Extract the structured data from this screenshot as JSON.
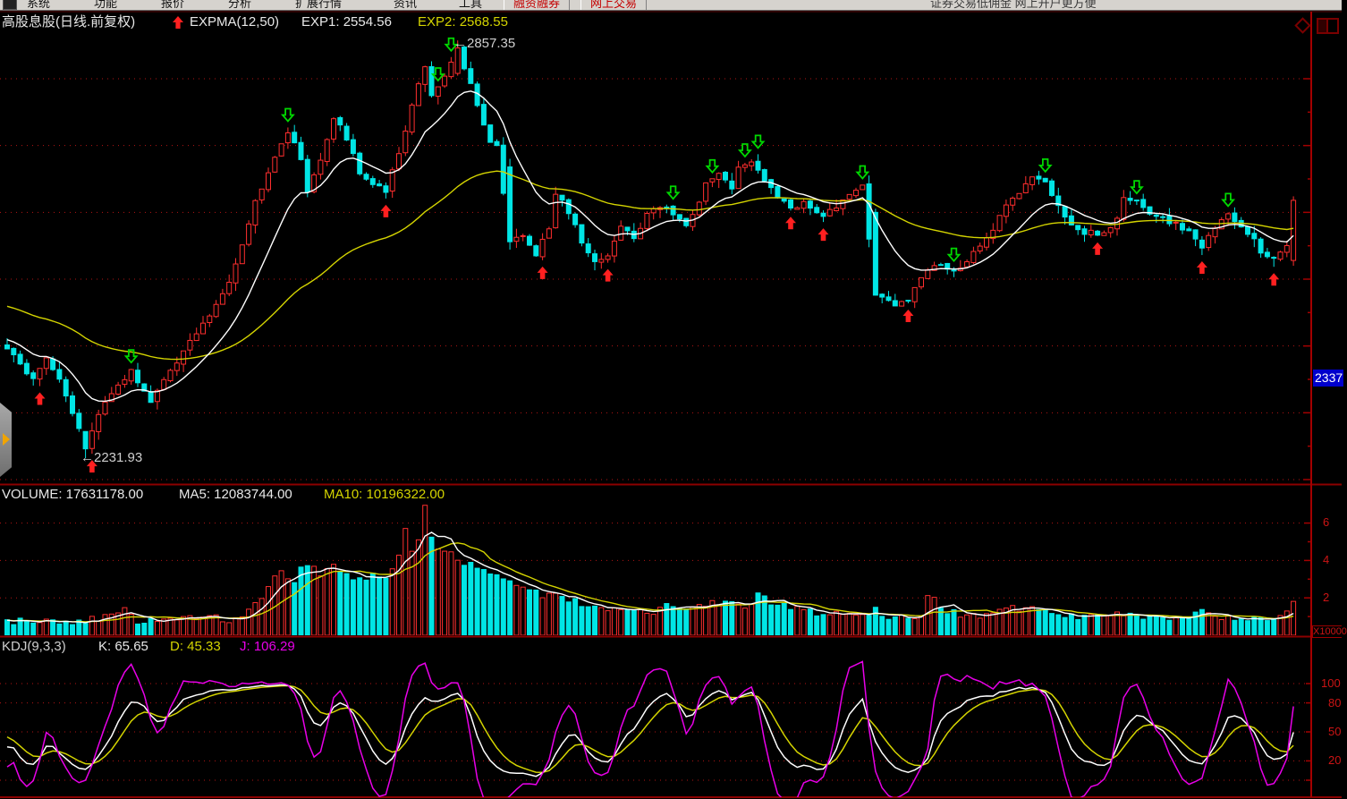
{
  "menubar": {
    "items": [
      "系统",
      "功能",
      "报价",
      "分析",
      "扩展行情",
      "资讯",
      "工具"
    ],
    "red_items": [
      "融资融券",
      "网上交易"
    ],
    "right_text": "证券交易低佣金 网上开户更方便"
  },
  "main_chart": {
    "title": "高股息股(日线.前复权)",
    "indicator_label": "EXPMA(12,50)",
    "exp1_label": "EXP1: 2554.56",
    "exp2_label": "EXP2: 2568.55",
    "high_annotation": "←2857.35",
    "low_annotation": "←2231.93",
    "price_axis_tag": "2337"
  },
  "volume_pane": {
    "volume_label": "VOLUME: 17631178.00",
    "ma5_label": "MA5: 12083744.00",
    "ma10_label": "MA10: 10196322.00",
    "tick_labels": [
      "6",
      "4",
      "2"
    ],
    "multiplier_label": "X10000"
  },
  "kdj_pane": {
    "title": "KDJ(9,3,3)",
    "k_label": "K: 65.65",
    "d_label": "D: 45.33",
    "j_label": "J: 106.29",
    "tick_labels": [
      "100",
      "80",
      "50",
      "20"
    ]
  },
  "colors": {
    "up": "#ff2e2e",
    "down": "#00e5e5",
    "exp1": "#ffffff",
    "exp2": "#d4d400",
    "grid": "#b41414",
    "axis": "#a40000",
    "separator": "#8c0000",
    "k": "#ffffff",
    "d": "#d4d400",
    "j": "#e800e8",
    "signal_up": "#ff2020",
    "signal_down": "#00d800",
    "blue_tag_bg": "#0000cc",
    "tick_text": "#cc1414",
    "menubar_bg": "#d6d3ce",
    "menu_red": "#c40000"
  },
  "chart_data": {
    "type": "candlestick",
    "n": 198,
    "seed": 9,
    "title": "高股息股 daily, forward adjusted",
    "price_gridlines": [
      2800,
      2700,
      2600,
      2500,
      2400,
      2300,
      2200
    ],
    "price_high": 2857.35,
    "price_low": 2231.93,
    "latest": {
      "exp1": 2554.56,
      "exp2": 2568.55,
      "volume": 17631178.0,
      "vol_ma5": 12083744.0,
      "vol_ma10": 10196322.0,
      "k": 65.65,
      "d": 45.33,
      "j": 106.29
    },
    "expma_periods": [
      12,
      50
    ],
    "exp1_init": 2412,
    "exp2_init": 2462,
    "kdj_params": [
      9,
      3,
      3
    ],
    "vol_ticks": [
      6,
      4,
      2
    ],
    "kdj_gridlines": [
      100,
      80,
      50,
      20,
      0
    ],
    "price_anchors": [
      [
        0,
        2398
      ],
      [
        2,
        2372
      ],
      [
        4,
        2348
      ],
      [
        6,
        2382
      ],
      [
        8,
        2352
      ],
      [
        10,
        2298
      ],
      [
        12,
        2248
      ],
      [
        14,
        2295
      ],
      [
        16,
        2330
      ],
      [
        18,
        2352
      ],
      [
        19,
        2362
      ],
      [
        22,
        2318
      ],
      [
        25,
        2360
      ],
      [
        28,
        2405
      ],
      [
        31,
        2448
      ],
      [
        34,
        2498
      ],
      [
        36,
        2548
      ],
      [
        38,
        2615
      ],
      [
        40,
        2658
      ],
      [
        42,
        2700
      ],
      [
        43,
        2722
      ],
      [
        45,
        2680
      ],
      [
        46,
        2632
      ],
      [
        48,
        2676
      ],
      [
        50,
        2744
      ],
      [
        52,
        2710
      ],
      [
        54,
        2660
      ],
      [
        56,
        2645
      ],
      [
        58,
        2632
      ],
      [
        60,
        2690
      ],
      [
        62,
        2760
      ],
      [
        64,
        2817
      ],
      [
        65,
        2772
      ],
      [
        67,
        2804
      ],
      [
        69,
        2838
      ],
      [
        71,
        2790
      ],
      [
        72,
        2758
      ],
      [
        74,
        2704
      ],
      [
        75,
        2697
      ],
      [
        77,
        2556
      ],
      [
        79,
        2562
      ],
      [
        81,
        2536
      ],
      [
        83,
        2576
      ],
      [
        84,
        2630
      ],
      [
        86,
        2602
      ],
      [
        88,
        2556
      ],
      [
        90,
        2523
      ],
      [
        92,
        2536
      ],
      [
        94,
        2576
      ],
      [
        96,
        2562
      ],
      [
        98,
        2596
      ],
      [
        100,
        2610
      ],
      [
        102,
        2598
      ],
      [
        104,
        2583
      ],
      [
        106,
        2617
      ],
      [
        107,
        2644
      ],
      [
        109,
        2656
      ],
      [
        111,
        2637
      ],
      [
        112,
        2670
      ],
      [
        114,
        2676
      ],
      [
        116,
        2644
      ],
      [
        118,
        2623
      ],
      [
        120,
        2603
      ],
      [
        122,
        2617
      ],
      [
        124,
        2603
      ],
      [
        125,
        2596
      ],
      [
        127,
        2610
      ],
      [
        129,
        2630
      ],
      [
        131,
        2637
      ],
      [
        132,
        2560
      ],
      [
        133,
        2476
      ],
      [
        136,
        2463
      ],
      [
        138,
        2469
      ],
      [
        139,
        2489
      ],
      [
        141,
        2516
      ],
      [
        143,
        2523
      ],
      [
        145,
        2509
      ],
      [
        147,
        2529
      ],
      [
        149,
        2550
      ],
      [
        151,
        2576
      ],
      [
        153,
        2610
      ],
      [
        155,
        2630
      ],
      [
        157,
        2657
      ],
      [
        159,
        2644
      ],
      [
        161,
        2610
      ],
      [
        163,
        2583
      ],
      [
        165,
        2570
      ],
      [
        166,
        2576
      ],
      [
        167,
        2563
      ],
      [
        170,
        2590
      ],
      [
        171,
        2623
      ],
      [
        173,
        2617
      ],
      [
        175,
        2596
      ],
      [
        177,
        2590
      ],
      [
        179,
        2583
      ],
      [
        181,
        2570
      ],
      [
        183,
        2550
      ],
      [
        185,
        2576
      ],
      [
        187,
        2596
      ],
      [
        190,
        2570
      ],
      [
        192,
        2543
      ],
      [
        194,
        2529
      ],
      [
        195,
        2543
      ],
      [
        196,
        2550
      ],
      [
        197,
        2618
      ]
    ],
    "price_overrides": {
      "12": {
        "open": 2272,
        "close": 2246,
        "low": 2231.93
      },
      "69": {
        "open": 2808,
        "close": 2846,
        "high": 2857.35
      },
      "77": {
        "open": 2668,
        "close": 2556
      },
      "133": {
        "open": 2600,
        "close": 2476
      },
      "197": {
        "open": 2528,
        "close": 2618,
        "high": 2624,
        "low": 2520
      }
    },
    "volume_anchors": [
      [
        0,
        0.7
      ],
      [
        5,
        0.8
      ],
      [
        10,
        0.7
      ],
      [
        14,
        0.9
      ],
      [
        18,
        1.3
      ],
      [
        20,
        0.8
      ],
      [
        24,
        0.7
      ],
      [
        28,
        0.9
      ],
      [
        31,
        1.0
      ],
      [
        34,
        0.8
      ],
      [
        36,
        1.1
      ],
      [
        38,
        1.6
      ],
      [
        40,
        2.6
      ],
      [
        42,
        3.4
      ],
      [
        44,
        3.0
      ],
      [
        46,
        3.9
      ],
      [
        48,
        3.3
      ],
      [
        50,
        3.6
      ],
      [
        52,
        3.2
      ],
      [
        54,
        2.9
      ],
      [
        56,
        3.3
      ],
      [
        58,
        3.0
      ],
      [
        60,
        4.4
      ],
      [
        61,
        5.9
      ],
      [
        62,
        4.5
      ],
      [
        63,
        5.2
      ],
      [
        64,
        6.9
      ],
      [
        65,
        5.3
      ],
      [
        66,
        4.7
      ],
      [
        68,
        4.4
      ],
      [
        70,
        3.9
      ],
      [
        72,
        3.5
      ],
      [
        74,
        3.4
      ],
      [
        76,
        3.1
      ],
      [
        78,
        2.7
      ],
      [
        80,
        2.5
      ],
      [
        82,
        2.1
      ],
      [
        84,
        2.4
      ],
      [
        86,
        1.9
      ],
      [
        88,
        1.7
      ],
      [
        90,
        1.5
      ],
      [
        93,
        1.4
      ],
      [
        96,
        1.5
      ],
      [
        99,
        1.3
      ],
      [
        102,
        1.6
      ],
      [
        105,
        1.4
      ],
      [
        108,
        1.7
      ],
      [
        111,
        1.9
      ],
      [
        113,
        1.6
      ],
      [
        115,
        2.1
      ],
      [
        117,
        1.8
      ],
      [
        119,
        1.5
      ],
      [
        122,
        1.3
      ],
      [
        125,
        1.1
      ],
      [
        128,
        1.2
      ],
      [
        131,
        1.0
      ],
      [
        133,
        1.3
      ],
      [
        135,
        1.0
      ],
      [
        138,
        0.9
      ],
      [
        140,
        1.2
      ],
      [
        141,
        2.3
      ],
      [
        143,
        1.5
      ],
      [
        145,
        1.2
      ],
      [
        147,
        1.0
      ],
      [
        149,
        1.1
      ],
      [
        151,
        1.3
      ],
      [
        153,
        1.6
      ],
      [
        155,
        1.4
      ],
      [
        157,
        1.5
      ],
      [
        159,
        1.2
      ],
      [
        161,
        1.0
      ],
      [
        163,
        1.1
      ],
      [
        165,
        0.9
      ],
      [
        168,
        1.0
      ],
      [
        171,
        1.2
      ],
      [
        174,
        1.0
      ],
      [
        177,
        0.9
      ],
      [
        180,
        1.0
      ],
      [
        183,
        1.3
      ],
      [
        186,
        0.9
      ],
      [
        189,
        1.0
      ],
      [
        192,
        0.9
      ],
      [
        194,
        1.0
      ],
      [
        196,
        1.1
      ],
      [
        197,
        1.7
      ]
    ],
    "signals_up": [
      5,
      13,
      58,
      82,
      92,
      120,
      125,
      138,
      167,
      183,
      194
    ],
    "signals_down": [
      19,
      43,
      66,
      68,
      102,
      108,
      113,
      115,
      131,
      145,
      159,
      173,
      187
    ]
  }
}
